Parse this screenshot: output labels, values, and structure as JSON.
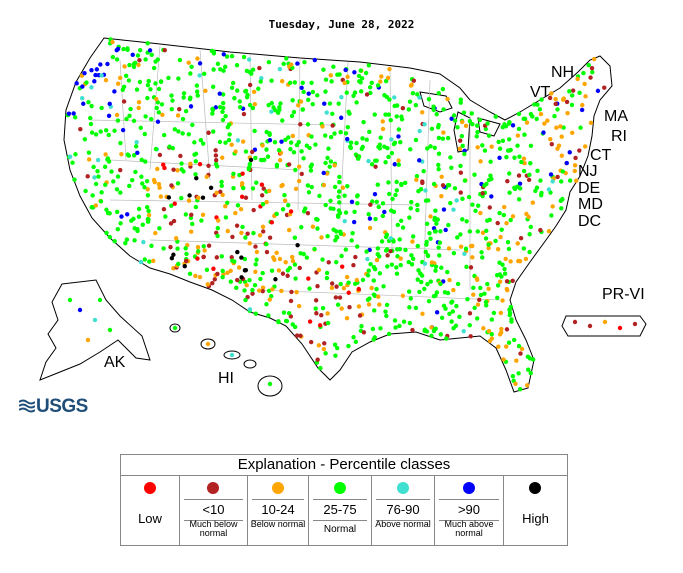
{
  "title": "Tuesday, June 28, 2022",
  "logo_text": "USGS",
  "state_labels": {
    "NH": "NH",
    "VT": "VT",
    "MA": "MA",
    "RI": "RI",
    "CT": "CT",
    "NJ": "NJ",
    "DE": "DE",
    "MD": "MD",
    "DC": "DC",
    "PR_VI": "PR-VI",
    "AK": "AK",
    "HI": "HI"
  },
  "legend": {
    "title": "Explanation - Percentile classes",
    "classes": [
      {
        "range": "",
        "desc": "Low",
        "color": "#ff0000"
      },
      {
        "range": "<10",
        "desc": "Much below normal",
        "color": "#b22222"
      },
      {
        "range": "10-24",
        "desc": "Below normal",
        "color": "#ffa500"
      },
      {
        "range": "25-75",
        "desc": "Normal",
        "color": "#00ff00"
      },
      {
        "range": "76-90",
        "desc": "Above normal",
        "color": "#40e0d0"
      },
      {
        "range": ">90",
        "desc": "Much above normal",
        "color": "#0000ff"
      },
      {
        "range": "",
        "desc": "High",
        "color": "#000000"
      }
    ]
  }
}
